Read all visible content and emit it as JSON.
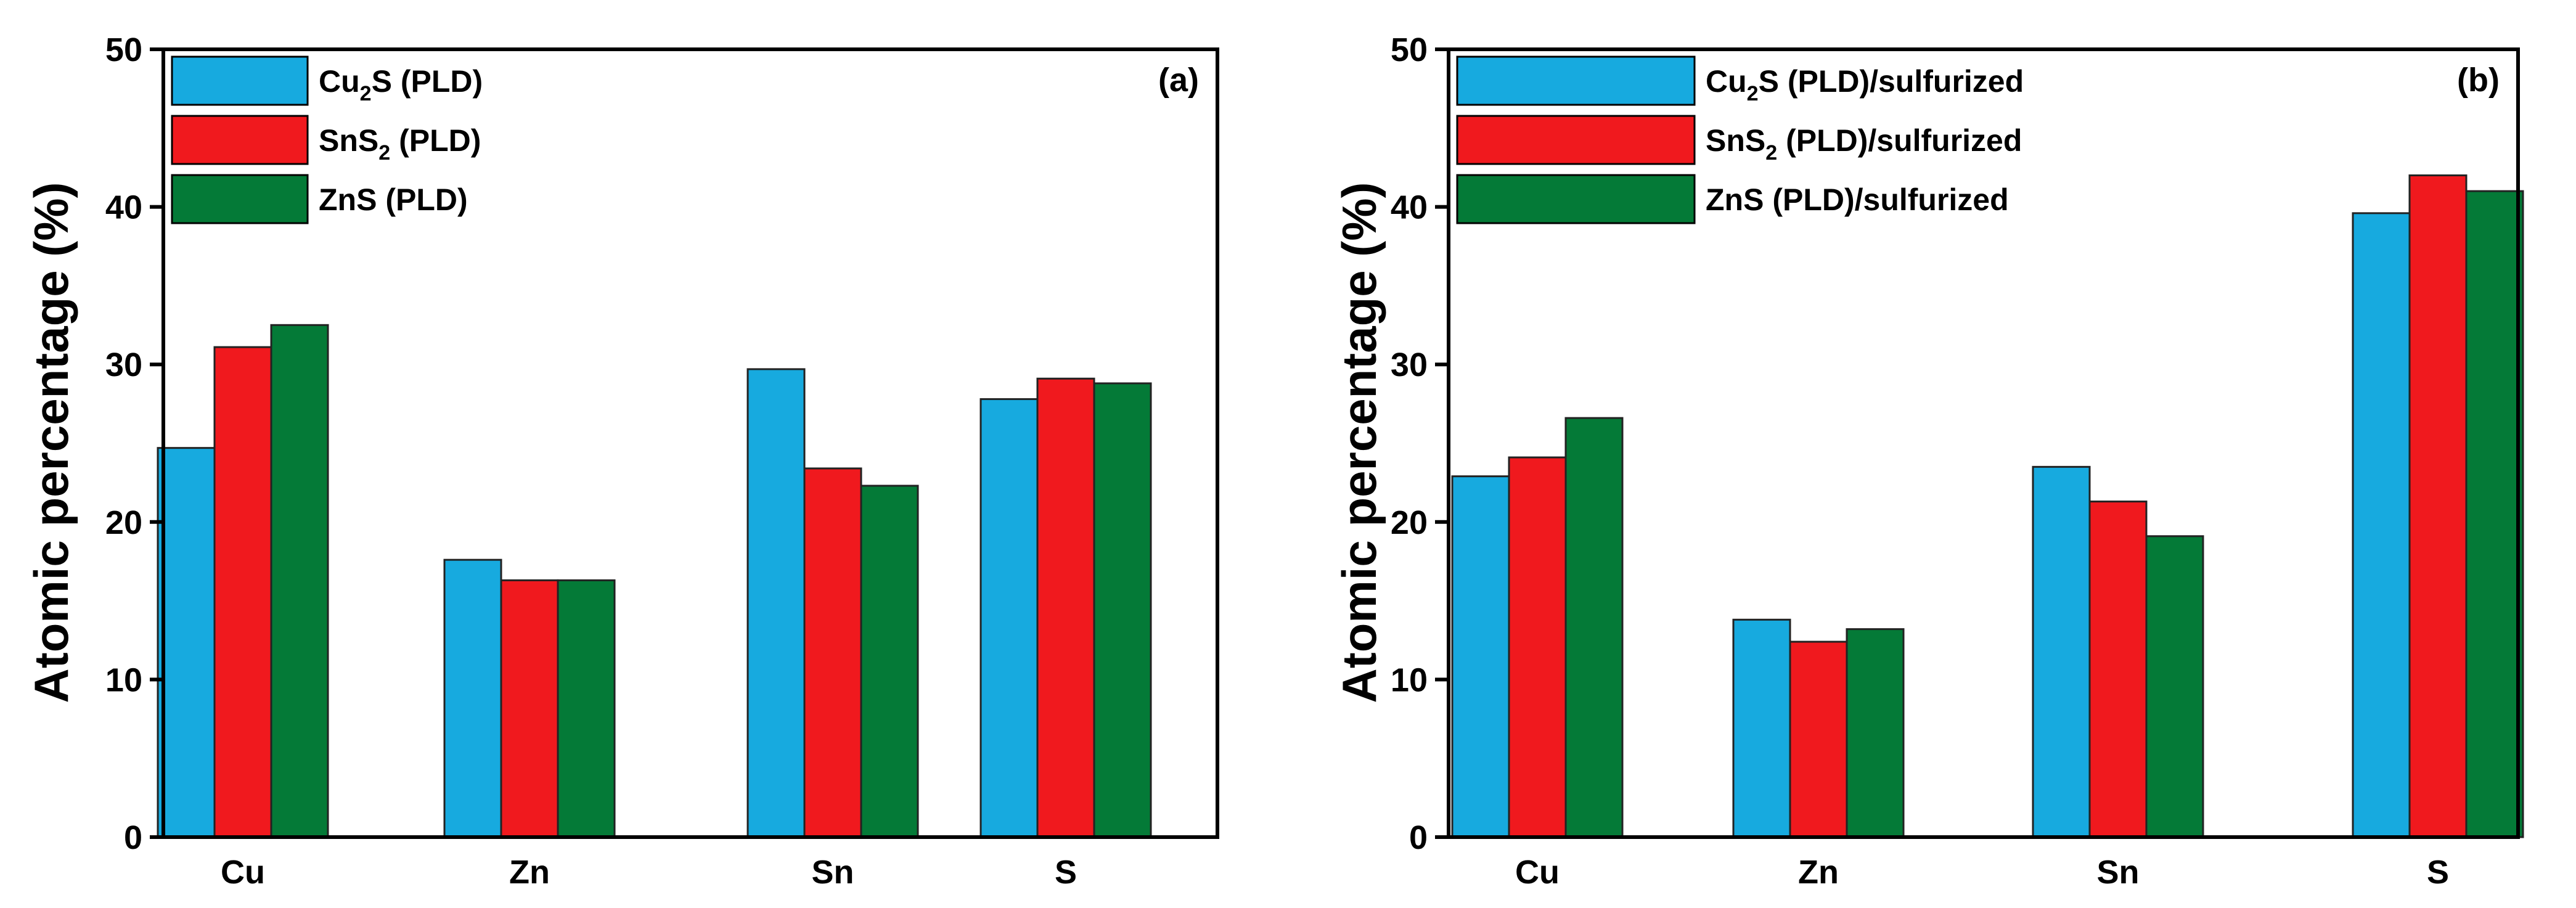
{
  "colors": {
    "series1": "#17aadf",
    "series2": "#f0191e",
    "series3": "#047a37"
  },
  "chart_data": [
    {
      "type": "bar",
      "panel_label": "(a)",
      "ylabel": "Atomic percentage (%)",
      "ylim": [
        0,
        50
      ],
      "yticks": [
        "0",
        "10",
        "20",
        "30",
        "40",
        "50"
      ],
      "categories": [
        "Cu",
        "Zn",
        "Sn",
        "S"
      ],
      "legend_position": "top-left",
      "series": [
        {
          "name": "Cu2S (PLD)",
          "name_parts": [
            "Cu",
            "2",
            "S (PLD)"
          ],
          "values": [
            24.7,
            17.6,
            29.7,
            27.8
          ]
        },
        {
          "name": "SnS2 (PLD)",
          "name_parts": [
            "SnS",
            "2",
            " (PLD)"
          ],
          "values": [
            31.1,
            16.3,
            23.4,
            29.1
          ]
        },
        {
          "name": "ZnS (PLD)",
          "name_parts": [
            "ZnS (PLD)",
            "",
            ""
          ],
          "values": [
            32.5,
            16.3,
            22.3,
            28.8
          ]
        }
      ]
    },
    {
      "type": "bar",
      "panel_label": "(b)",
      "ylabel": "Atomic percentage (%)",
      "ylim": [
        0,
        50
      ],
      "yticks": [
        "0",
        "10",
        "20",
        "30",
        "40",
        "50"
      ],
      "categories": [
        "Cu",
        "Zn",
        "Sn",
        "S"
      ],
      "legend_position": "top-left",
      "series": [
        {
          "name": "Cu2S (PLD)/sulfurized",
          "name_parts": [
            "Cu",
            "2",
            "S (PLD)/sulfurized"
          ],
          "values": [
            22.9,
            13.8,
            23.5,
            39.6
          ]
        },
        {
          "name": "SnS2 (PLD)/sulfurized",
          "name_parts": [
            "SnS",
            "2",
            " (PLD)/sulfurized"
          ],
          "values": [
            24.1,
            12.4,
            21.3,
            42.0
          ]
        },
        {
          "name": "ZnS (PLD)/sulfurized",
          "name_parts": [
            "ZnS (PLD)/sulfurized",
            "",
            ""
          ],
          "values": [
            26.6,
            13.2,
            19.1,
            41.0
          ]
        }
      ]
    }
  ]
}
